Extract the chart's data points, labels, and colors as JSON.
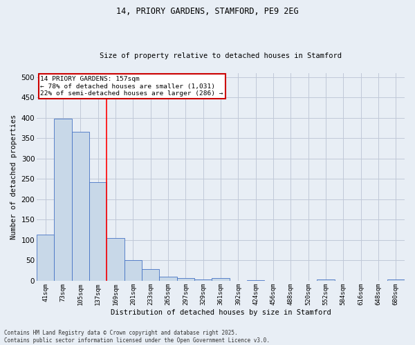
{
  "title_line1": "14, PRIORY GARDENS, STAMFORD, PE9 2EG",
  "title_line2": "Size of property relative to detached houses in Stamford",
  "xlabel": "Distribution of detached houses by size in Stamford",
  "ylabel": "Number of detached properties",
  "categories": [
    "41sqm",
    "73sqm",
    "105sqm",
    "137sqm",
    "169sqm",
    "201sqm",
    "233sqm",
    "265sqm",
    "297sqm",
    "329sqm",
    "361sqm",
    "392sqm",
    "424sqm",
    "456sqm",
    "488sqm",
    "520sqm",
    "552sqm",
    "584sqm",
    "616sqm",
    "648sqm",
    "680sqm"
  ],
  "values": [
    113,
    397,
    365,
    242,
    105,
    50,
    29,
    10,
    7,
    3,
    7,
    0,
    2,
    0,
    0,
    0,
    3,
    0,
    0,
    0,
    3
  ],
  "bar_color": "#c8d8e8",
  "bar_edge_color": "#4472c4",
  "red_line_index": 3.5,
  "annotation_title": "14 PRIORY GARDENS: 157sqm",
  "annotation_line1": "← 78% of detached houses are smaller (1,031)",
  "annotation_line2": "22% of semi-detached houses are larger (286) →",
  "annotation_box_color": "#ffffff",
  "annotation_box_edge": "#cc0000",
  "ylim": [
    0,
    510
  ],
  "yticks": [
    0,
    50,
    100,
    150,
    200,
    250,
    300,
    350,
    400,
    450,
    500
  ],
  "grid_color": "#c0c8d8",
  "background_color": "#e8eef5",
  "footer_line1": "Contains HM Land Registry data © Crown copyright and database right 2025.",
  "footer_line2": "Contains public sector information licensed under the Open Government Licence v3.0."
}
